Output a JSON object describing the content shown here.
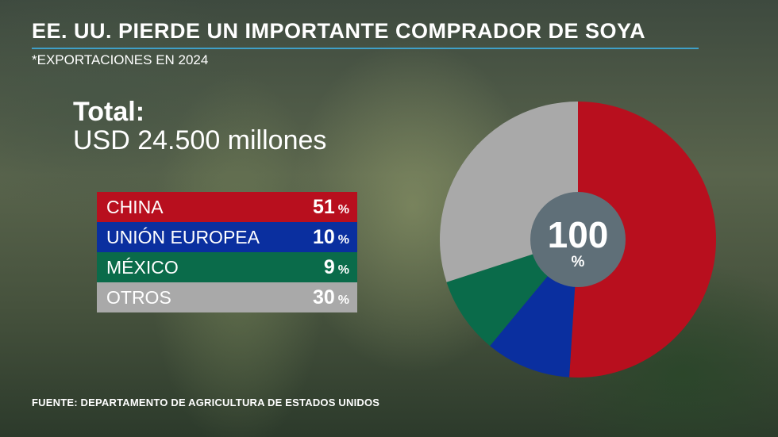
{
  "header": {
    "title": "EE. UU. PIERDE UN IMPORTANTE COMPRADOR DE SOYA",
    "subtitle": "*EXPORTACIONES EN 2024"
  },
  "total": {
    "label": "Total:",
    "value": "USD 24.500 millones"
  },
  "legend": [
    {
      "label": "CHINA",
      "value": "51",
      "unit": "%",
      "color": "#b80f1e"
    },
    {
      "label": "UNIÓN EUROPEA",
      "value": "10",
      "unit": "%",
      "color": "#0a2f9f"
    },
    {
      "label": "MÉXICO",
      "value": "9",
      "unit": "%",
      "color": "#0a6b4a"
    },
    {
      "label": "OTROS",
      "value": "30",
      "unit": "%",
      "color": "#a9a9a9"
    }
  ],
  "chart_data": {
    "type": "pie",
    "categories": [
      "CHINA",
      "UNIÓN EUROPEA",
      "MÉXICO",
      "OTROS"
    ],
    "values": [
      51,
      10,
      9,
      30
    ],
    "colors": [
      "#b80f1e",
      "#0a2f9f",
      "#0a6b4a",
      "#a9a9a9"
    ],
    "center_value": "100",
    "center_unit": "%"
  },
  "source": "FUENTE: DEPARTAMENTO DE AGRICULTURA DE ESTADOS UNIDOS"
}
